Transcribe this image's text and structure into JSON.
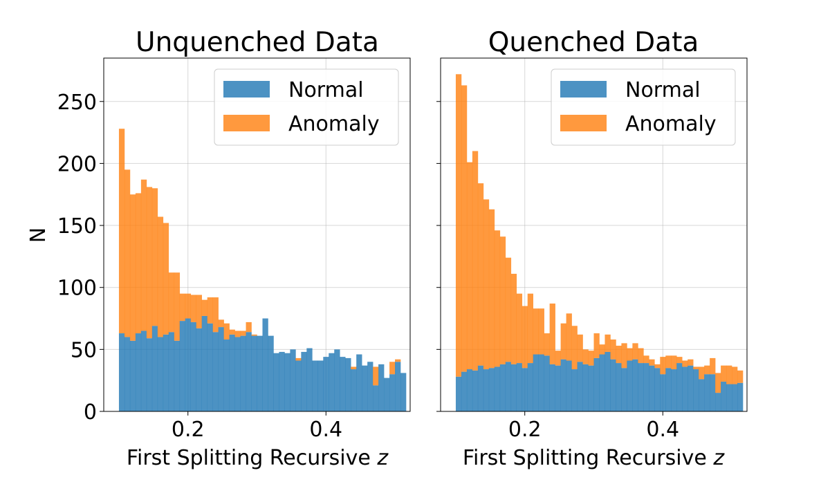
{
  "chart_data": [
    {
      "type": "bar",
      "stacked": true,
      "title": "Unquenched Data",
      "xlabel": "First Splitting Recursive ",
      "xlabel_var": "z",
      "ylabel": "N",
      "xlim": [
        0.078,
        0.522
      ],
      "ylim": [
        0,
        285
      ],
      "xticks": [
        "0.2",
        "0.4"
      ],
      "xtick_values": [
        0.2,
        0.4
      ],
      "yticks": [
        "0",
        "50",
        "100",
        "150",
        "200",
        "250"
      ],
      "ytick_values": [
        0,
        50,
        100,
        150,
        200,
        250
      ],
      "grid": true,
      "legend_position": "upper right",
      "bin_start": 0.1,
      "bin_width": 0.008,
      "series": [
        {
          "name": "Normal",
          "color": "#1f77b4",
          "values": [
            63,
            60,
            57,
            63,
            65,
            59,
            69,
            60,
            62,
            64,
            57,
            73,
            75,
            72,
            67,
            77,
            71,
            64,
            68,
            58,
            62,
            60,
            61,
            64,
            61,
            61,
            75,
            61,
            47,
            48,
            47,
            50,
            41,
            48,
            51,
            41,
            41,
            44,
            47,
            50,
            44,
            43,
            34,
            46,
            37,
            40,
            21,
            38,
            27,
            30,
            40,
            31
          ]
        },
        {
          "name": "Anomaly",
          "color": "#ff7f0e",
          "values": [
            165,
            135,
            118,
            113,
            122,
            122,
            111,
            97,
            90,
            48,
            55,
            22,
            20,
            22,
            27,
            13,
            21,
            28,
            6,
            13,
            4,
            5,
            4,
            8,
            1,
            0,
            0,
            0,
            0,
            0,
            0,
            0,
            2,
            0,
            0,
            0,
            0,
            0,
            0,
            0,
            0,
            0,
            2,
            0,
            0,
            0,
            15,
            0,
            0,
            10,
            2,
            0
          ]
        }
      ]
    },
    {
      "type": "bar",
      "stacked": true,
      "title": "Quenched Data",
      "xlabel": "First Splitting Recursive ",
      "xlabel_var": "z",
      "ylabel": "",
      "xlim": [
        0.078,
        0.522
      ],
      "ylim": [
        0,
        285
      ],
      "xticks": [
        "0.2",
        "0.4"
      ],
      "xtick_values": [
        0.2,
        0.4
      ],
      "grid": true,
      "legend_position": "upper right",
      "bin_start": 0.1,
      "bin_width": 0.008,
      "series": [
        {
          "name": "Normal",
          "color": "#1f77b4",
          "values": [
            28,
            32,
            34,
            33,
            37,
            34,
            35,
            36,
            38,
            40,
            38,
            39,
            35,
            39,
            46,
            46,
            45,
            38,
            37,
            42,
            41,
            34,
            40,
            38,
            37,
            43,
            46,
            48,
            42,
            39,
            35,
            41,
            42,
            39,
            39,
            37,
            35,
            30,
            35,
            34,
            39,
            36,
            37,
            34,
            26,
            30,
            30,
            15,
            24,
            22,
            22,
            23
          ]
        },
        {
          "name": "Anomaly",
          "color": "#ff7f0e",
          "values": [
            244,
            231,
            167,
            177,
            147,
            137,
            128,
            110,
            103,
            84,
            73,
            56,
            50,
            56,
            37,
            37,
            18,
            49,
            12,
            29,
            38,
            35,
            22,
            12,
            12,
            20,
            8,
            14,
            16,
            14,
            20,
            10,
            13,
            12,
            6,
            5,
            3,
            14,
            10,
            11,
            5,
            5,
            5,
            2,
            10,
            7,
            13,
            16,
            13,
            15,
            14,
            10
          ]
        }
      ]
    }
  ]
}
